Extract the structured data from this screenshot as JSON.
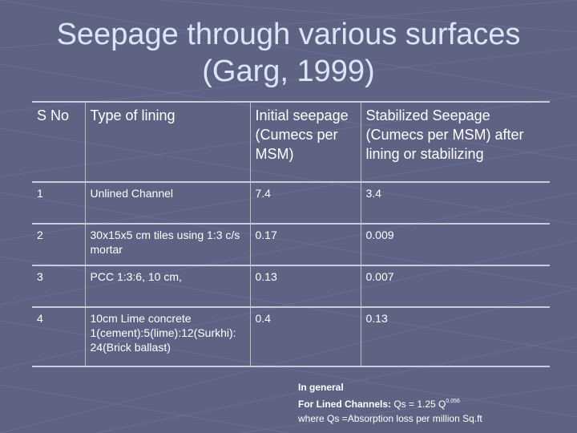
{
  "slide": {
    "title_line1": "Seepage through various surfaces",
    "title_line2": "(Garg, 1999)"
  },
  "table": {
    "headers": [
      "S No",
      "Type of lining",
      "Initial seepage (Cumecs per MSM)",
      "Stabilized Seepage (Cumecs per MSM) after lining or stabilizing"
    ],
    "rows": [
      [
        "1",
        "Unlined Channel",
        "7.4",
        "3.4"
      ],
      [
        "2",
        "30x15x5 cm tiles using 1:3 c/s mortar",
        "0.17",
        "0.009"
      ],
      [
        "3",
        "PCC 1:3:6, 10 cm,",
        "0.13",
        "0.007"
      ],
      [
        "4",
        "10cm Lime concrete 1(cement):5(lime):12(Surkhi): 24(Brick ballast)",
        "0.4",
        "0.13"
      ]
    ]
  },
  "note": {
    "line1": "In general",
    "line2_label": "For Lined Channels:",
    "line2_formula": " Qs = 1.25 Q",
    "line2_exponent": "0.056",
    "line3": "where Qs =Absorption loss per million Sq.ft"
  },
  "colors": {
    "background": "#5e6384",
    "title": "#d9e6f5",
    "text": "#ffffff"
  }
}
